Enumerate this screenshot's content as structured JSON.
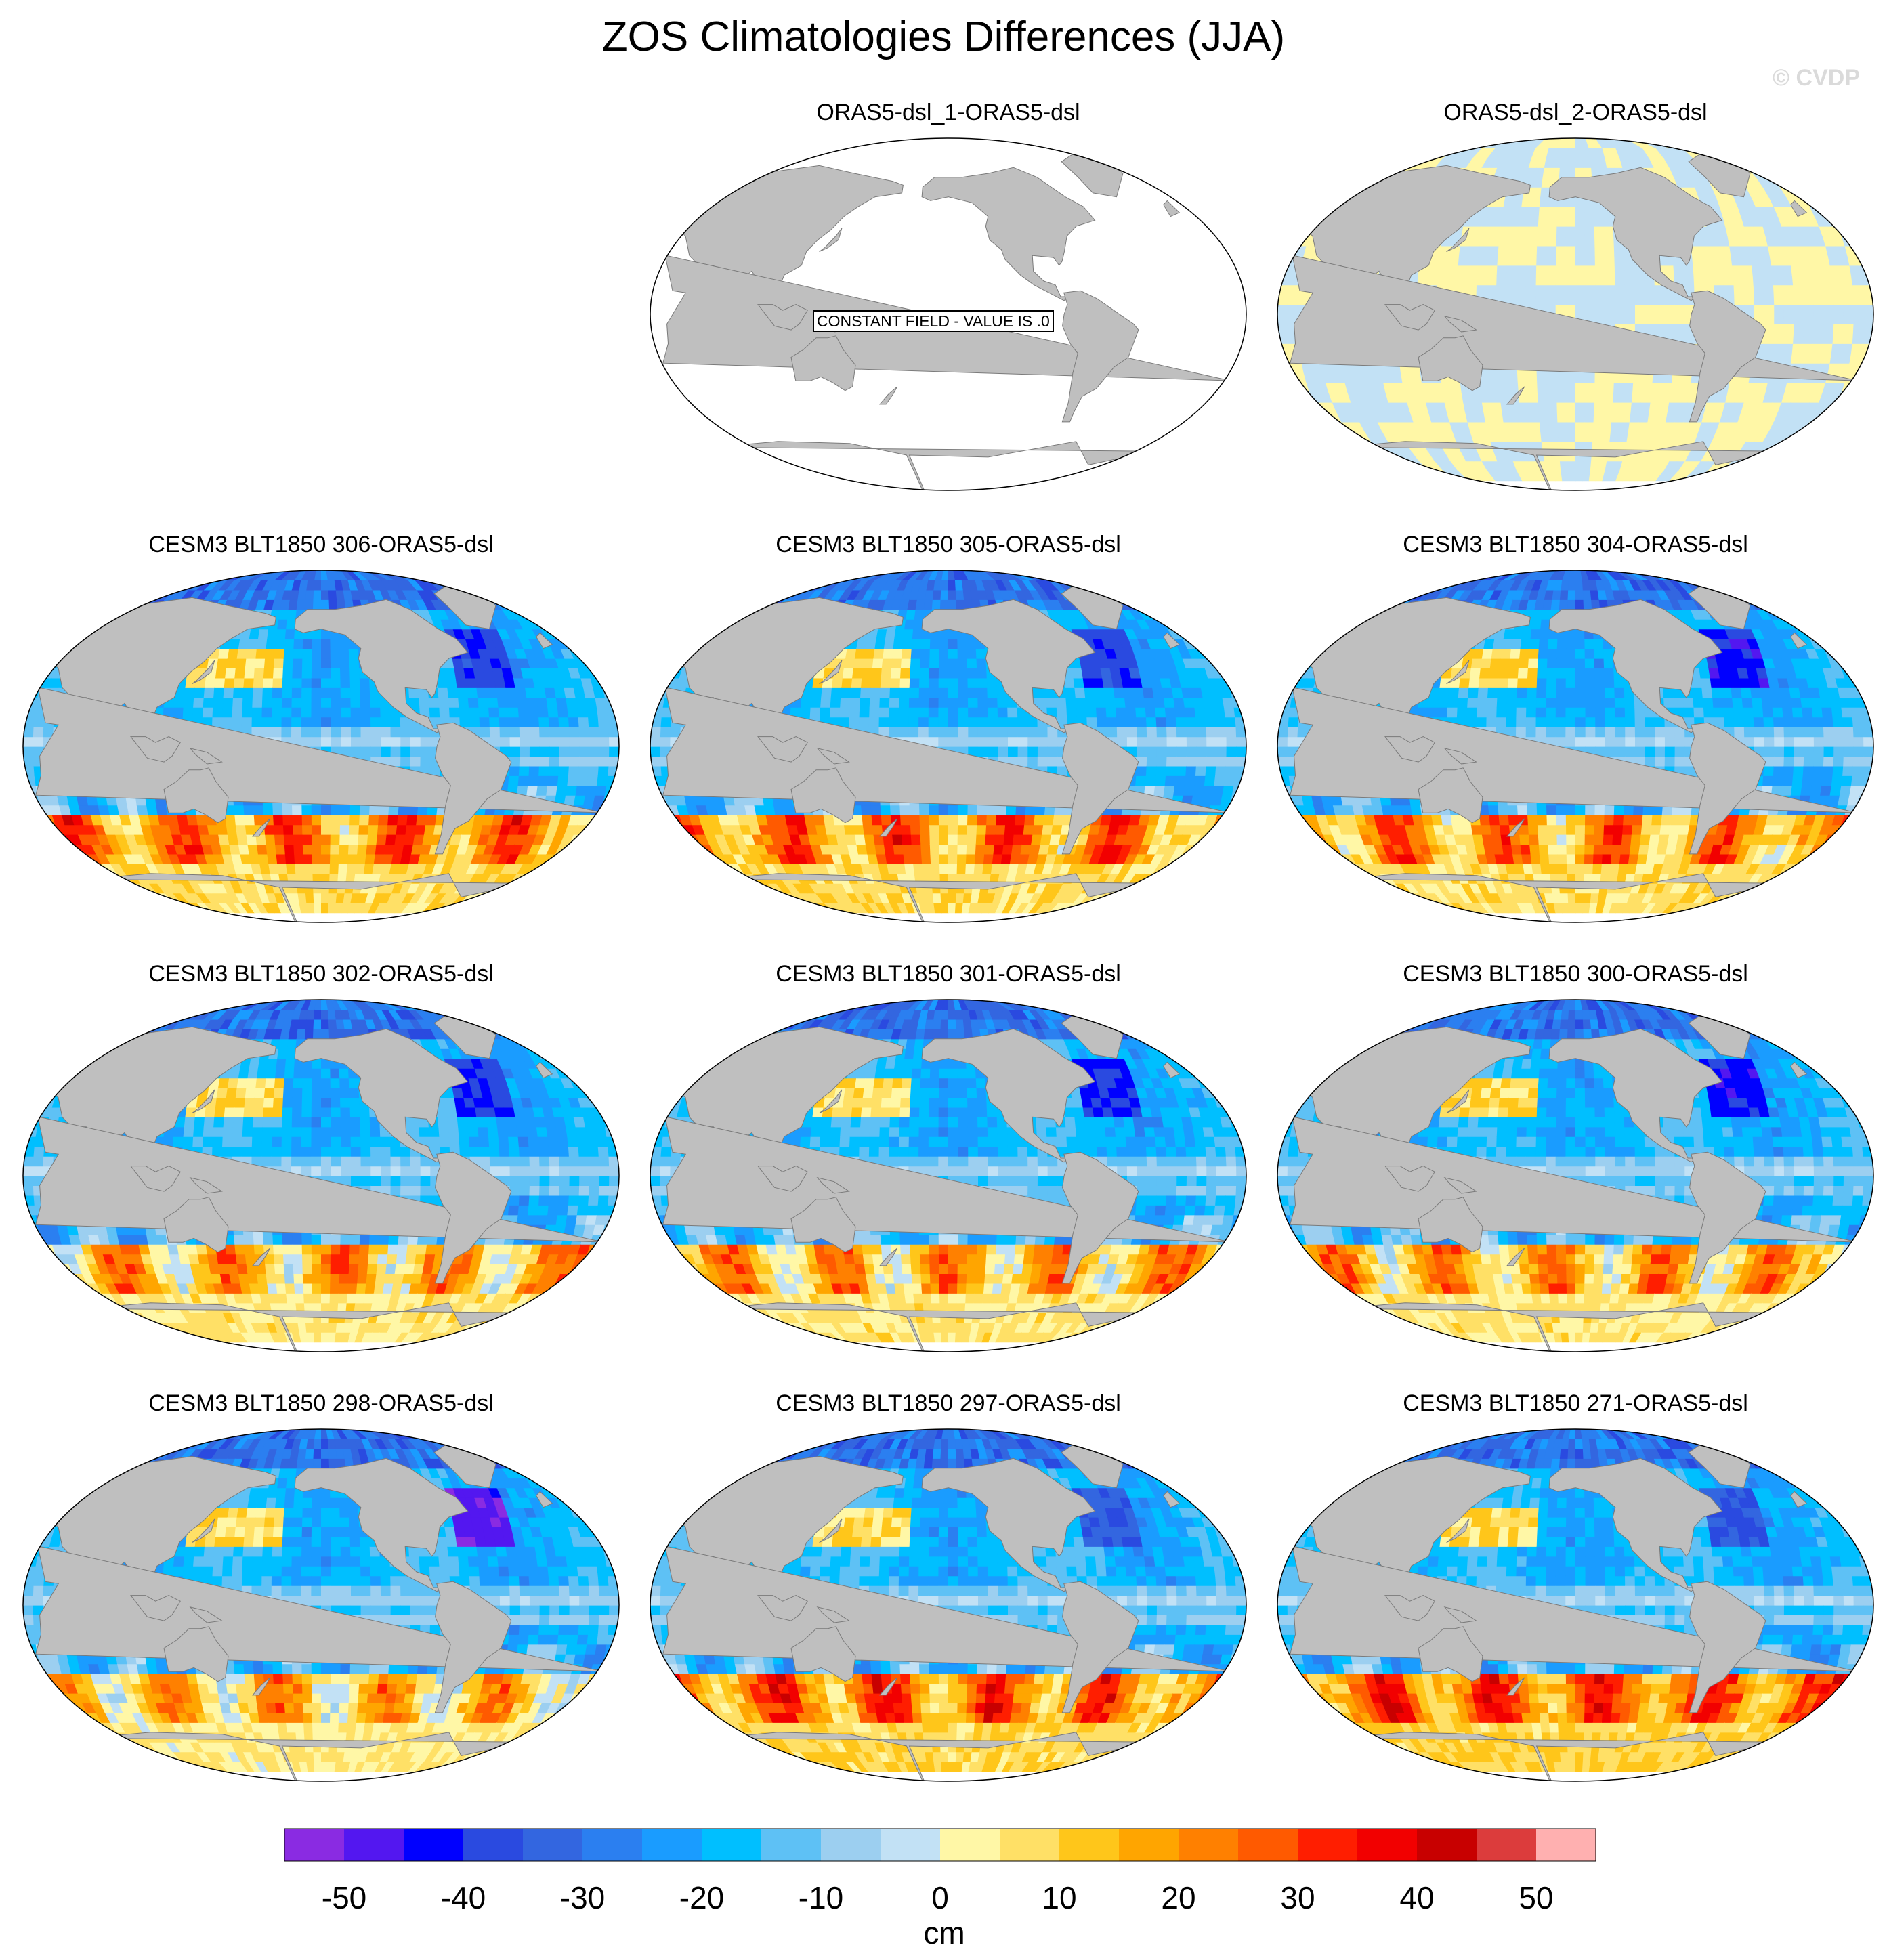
{
  "chart_data": {
    "type": "heatmap",
    "title": "ZOS Climatologies Differences (JJA)",
    "watermark": "© CVDP",
    "projection": "Robinson (Pacific-centered)",
    "colorbar": {
      "units": "cm",
      "levels": [
        -50,
        -45,
        -40,
        -35,
        -30,
        -25,
        -20,
        -15,
        -10,
        -5,
        0,
        5,
        10,
        15,
        20,
        25,
        30,
        35,
        40,
        45,
        50
      ],
      "tick_labels": [
        "-50",
        "-40",
        "-30",
        "-20",
        "-10",
        "0",
        "10",
        "20",
        "30",
        "40",
        "50"
      ],
      "tick_values": [
        -50,
        -40,
        -30,
        -20,
        -10,
        0,
        10,
        20,
        30,
        40,
        50
      ],
      "colors": [
        "#8a2be2",
        "#5317f0",
        "#0000ff",
        "#2a4ae0",
        "#3366e0",
        "#2b7ff0",
        "#1a9cff",
        "#00bfff",
        "#5ec1f5",
        "#9ccff0",
        "#c2e1f5",
        "#fff7a6",
        "#ffe066",
        "#ffc61a",
        "#ffa500",
        "#ff8000",
        "#ff5a00",
        "#ff1e00",
        "#f20000",
        "#c80000",
        "#dc3c3c",
        "#ffb0b0"
      ]
    },
    "panels": [
      {
        "title": "ORAS5-dsl_1-ORAS5-dsl",
        "note": "CONSTANT FIELD - VALUE IS .0",
        "pattern": "zero",
        "south_mean": 0,
        "north_atlantic": 0
      },
      {
        "title": "ORAS5-dsl_2-ORAS5-dsl",
        "pattern": "small",
        "south_mean": 0,
        "north_atlantic": 0
      },
      {
        "title": "CESM3 BLT1850 306-ORAS5-dsl",
        "pattern": "model",
        "south_mean": 20,
        "north_atlantic": -38
      },
      {
        "title": "CESM3 BLT1850 305-ORAS5-dsl",
        "pattern": "model",
        "south_mean": 20,
        "north_atlantic": -38
      },
      {
        "title": "CESM3 BLT1850 304-ORAS5-dsl",
        "pattern": "model",
        "south_mean": 18,
        "north_atlantic": -42
      },
      {
        "title": "CESM3 BLT1850 302-ORAS5-dsl",
        "pattern": "model",
        "south_mean": 14,
        "north_atlantic": -40
      },
      {
        "title": "CESM3 BLT1850 301-ORAS5-dsl",
        "pattern": "model",
        "south_mean": 14,
        "north_atlantic": -40
      },
      {
        "title": "CESM3 BLT1850 300-ORAS5-dsl",
        "pattern": "model",
        "south_mean": 14,
        "north_atlantic": -42
      },
      {
        "title": "CESM3 BLT1850 298-ORAS5-dsl",
        "pattern": "model",
        "south_mean": 12,
        "north_atlantic": -48
      },
      {
        "title": "CESM3 BLT1850 297-ORAS5-dsl",
        "pattern": "model",
        "south_mean": 22,
        "north_atlantic": -34
      },
      {
        "title": "CESM3 BLT1850 271-ORAS5-dsl",
        "pattern": "model",
        "south_mean": 24,
        "north_atlantic": -36
      }
    ]
  }
}
